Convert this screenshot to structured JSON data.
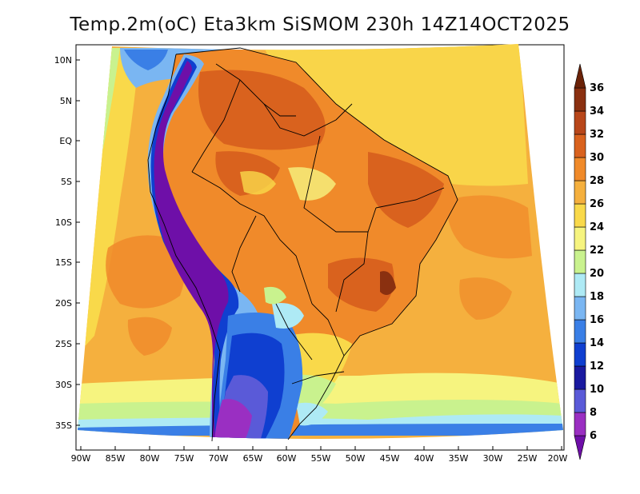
{
  "title": "Temp.2m(oC) Eta3km SiSMOM 230h 14Z14OCT2025",
  "lat_labels": [
    "10N",
    "5N",
    "EQ",
    "5S",
    "10S",
    "15S",
    "20S",
    "25S",
    "30S",
    "35S"
  ],
  "lon_labels": [
    "90W",
    "85W",
    "80W",
    "75W",
    "70W",
    "65W",
    "60W",
    "55W",
    "50W",
    "45W",
    "40W",
    "35W",
    "30W",
    "25W",
    "20W"
  ],
  "colorbar": {
    "labels": [
      "6",
      "8",
      "10",
      "12",
      "14",
      "16",
      "18",
      "20",
      "22",
      "24",
      "26",
      "28",
      "30",
      "32",
      "34",
      "36"
    ],
    "colors": [
      "#6e0fa8",
      "#9a2fc2",
      "#5a5ad8",
      "#1a1aa0",
      "#0f3fd0",
      "#3a7fe6",
      "#7ab6f2",
      "#aeeaf5",
      "#c9f28e",
      "#f6f47f",
      "#f9d94a",
      "#f5b03e",
      "#f08a2a",
      "#d9621e",
      "#b8461a",
      "#8a3010",
      "#6b2208"
    ]
  }
}
